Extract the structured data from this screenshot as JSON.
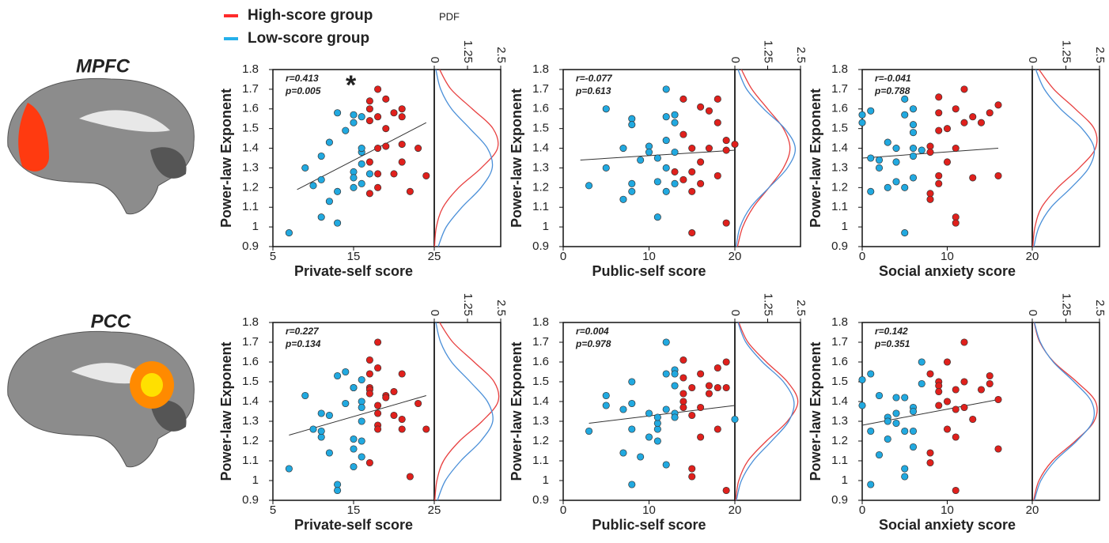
{
  "legend": [
    {
      "name": "High-score group",
      "color": "#ff2a2a"
    },
    {
      "name": "Low-score group",
      "color": "#25b0ea"
    }
  ],
  "regions": [
    "MPFC",
    "PCC"
  ],
  "chart_data": [
    {
      "type": "scatter",
      "xlabel": "Private-self score",
      "ylabel": "Power-law Exponent",
      "r_text": "r=0.413",
      "p_text": "p=0.005",
      "significance": "*",
      "pdf_label": "PDF",
      "xlim": [
        5,
        25
      ],
      "xticks": [
        5,
        15,
        25
      ],
      "ylim": [
        0.9,
        1.8
      ],
      "yticks": [
        0.9,
        1,
        1.1,
        1.2,
        1.3,
        1.4,
        1.5,
        1.6,
        1.7,
        1.8
      ],
      "series": [
        {
          "color": "#21a9e0",
          "x": [
            7,
            9,
            10,
            11,
            11,
            11,
            12,
            12,
            13,
            13,
            13,
            15,
            15,
            15,
            15,
            15,
            16,
            16,
            16,
            16,
            16,
            14,
            17
          ],
          "y": [
            0.97,
            1.3,
            1.21,
            1.05,
            1.24,
            1.36,
            1.43,
            1.13,
            1.02,
            1.18,
            1.58,
            1.57,
            1.53,
            1.28,
            1.2,
            1.25,
            1.38,
            1.4,
            1.22,
            1.56,
            1.32,
            1.49,
            1.27
          ]
        },
        {
          "color": "#e0201c",
          "x": [
            17,
            17,
            17,
            17,
            17,
            18,
            18,
            18,
            18,
            18,
            19,
            19,
            19,
            20,
            21,
            21,
            21,
            21,
            22,
            23,
            24,
            20
          ],
          "y": [
            1.17,
            1.33,
            1.54,
            1.6,
            1.64,
            1.7,
            1.56,
            1.4,
            1.27,
            1.2,
            1.65,
            1.41,
            1.5,
            1.58,
            1.6,
            1.56,
            1.42,
            1.33,
            1.18,
            1.4,
            1.26,
            1.27
          ]
        }
      ],
      "fit": {
        "x": [
          8,
          24
        ],
        "y": [
          1.19,
          1.53
        ]
      },
      "pdf_xlim": [
        0,
        2.5
      ],
      "pdf_ticks": [
        0,
        1.25,
        2.5
      ],
      "pdf_y": [
        0.9,
        1.0,
        1.1,
        1.2,
        1.3,
        1.4,
        1.5,
        1.6,
        1.7,
        1.8
      ],
      "pdf": [
        {
          "color": "#e84040",
          "values": [
            0.01,
            0.08,
            0.33,
            0.92,
            1.77,
            2.38,
            2.21,
            1.43,
            0.63,
            0.2
          ]
        },
        {
          "color": "#4a8fd8",
          "values": [
            0.15,
            0.45,
            1.04,
            1.76,
            2.18,
            2.0,
            1.34,
            0.65,
            0.24,
            0.06
          ]
        }
      ]
    },
    {
      "type": "scatter",
      "xlabel": "Public-self score",
      "ylabel": "Power-law Exponent",
      "r_text": "r=-0.077",
      "p_text": "p=0.613",
      "xlim": [
        0,
        20
      ],
      "xticks": [
        0,
        10,
        20
      ],
      "ylim": [
        0.9,
        1.8
      ],
      "yticks": [
        0.9,
        1,
        1.1,
        1.2,
        1.3,
        1.4,
        1.5,
        1.6,
        1.7,
        1.8
      ],
      "series": [
        {
          "color": "#21a9e0",
          "x": [
            3,
            5,
            5,
            7,
            7,
            8,
            8,
            8,
            8,
            9,
            10,
            10,
            11,
            11,
            11,
            12,
            12,
            12,
            12,
            13,
            13,
            13,
            13,
            12
          ],
          "y": [
            1.21,
            1.6,
            1.3,
            1.14,
            1.4,
            1.55,
            1.52,
            1.22,
            1.18,
            1.34,
            1.41,
            1.38,
            1.05,
            1.23,
            1.35,
            1.7,
            1.56,
            1.44,
            1.18,
            1.57,
            1.53,
            1.38,
            1.22,
            1.3
          ]
        },
        {
          "color": "#e0201c",
          "x": [
            13,
            14,
            14,
            14,
            15,
            15,
            15,
            15,
            16,
            16,
            17,
            17,
            18,
            18,
            18,
            19,
            19,
            19,
            20,
            16
          ],
          "y": [
            1.28,
            1.65,
            1.47,
            1.24,
            1.18,
            1.4,
            0.97,
            1.28,
            1.61,
            1.22,
            1.59,
            1.4,
            1.65,
            1.53,
            1.26,
            1.02,
            1.44,
            1.39,
            1.42,
            1.33
          ]
        }
      ],
      "fit": {
        "x": [
          2,
          20
        ],
        "y": [
          1.34,
          1.39
        ]
      },
      "pdf_xlim": [
        0,
        2.5
      ],
      "pdf_ticks": [
        0,
        1.25,
        2.5
      ],
      "pdf_y": [
        0.9,
        1.0,
        1.1,
        1.2,
        1.3,
        1.4,
        1.5,
        1.6,
        1.7,
        1.8
      ],
      "pdf": [
        {
          "color": "#e84040",
          "values": [
            0.1,
            0.3,
            0.7,
            1.3,
            1.85,
            2.1,
            1.85,
            1.25,
            0.65,
            0.25
          ]
        },
        {
          "color": "#4a8fd8",
          "values": [
            0.05,
            0.2,
            0.6,
            1.3,
            2.0,
            2.3,
            1.9,
            1.1,
            0.45,
            0.12
          ]
        }
      ]
    },
    {
      "type": "scatter",
      "xlabel": "Social anxiety score",
      "ylabel": "Power-law Exponent",
      "r_text": "r=-0.041",
      "p_text": "p=0.788",
      "xlim": [
        0,
        20
      ],
      "xticks": [
        0,
        10,
        20
      ],
      "ylim": [
        0.9,
        1.8
      ],
      "yticks": [
        0.9,
        1,
        1.1,
        1.2,
        1.3,
        1.4,
        1.5,
        1.6,
        1.7,
        1.8
      ],
      "series": [
        {
          "color": "#21a9e0",
          "x": [
            0,
            0,
            1,
            1,
            1,
            2,
            2,
            3,
            3,
            4,
            4,
            5,
            5,
            5,
            5,
            6,
            6,
            6,
            6,
            6,
            7,
            6,
            4
          ],
          "y": [
            1.57,
            1.53,
            1.59,
            1.35,
            1.18,
            1.3,
            1.34,
            1.43,
            1.2,
            1.4,
            1.23,
            1.65,
            1.57,
            1.2,
            0.97,
            1.6,
            1.48,
            1.4,
            1.36,
            1.25,
            1.39,
            1.52,
            1.33
          ]
        },
        {
          "color": "#e0201c",
          "x": [
            8,
            8,
            8,
            8,
            9,
            9,
            9,
            9,
            9,
            10,
            11,
            11,
            11,
            11,
            12,
            12,
            13,
            14,
            15,
            16,
            16,
            10,
            13
          ],
          "y": [
            1.41,
            1.17,
            1.14,
            1.38,
            1.66,
            1.58,
            1.49,
            1.26,
            1.22,
            1.33,
            1.6,
            1.4,
            1.05,
            1.02,
            1.7,
            1.53,
            1.25,
            1.53,
            1.58,
            1.62,
            1.26,
            1.5,
            1.56
          ]
        }
      ],
      "fit": {
        "x": [
          0,
          16
        ],
        "y": [
          1.35,
          1.4
        ]
      },
      "pdf_xlim": [
        0,
        2.5
      ],
      "pdf_ticks": [
        0,
        1.25,
        2.5
      ],
      "pdf_y": [
        0.9,
        1.0,
        1.1,
        1.2,
        1.3,
        1.4,
        1.5,
        1.6,
        1.7,
        1.8
      ],
      "pdf": [
        {
          "color": "#e84040",
          "values": [
            0.02,
            0.1,
            0.35,
            0.95,
            1.75,
            2.35,
            2.3,
            1.6,
            0.8,
            0.25
          ]
        },
        {
          "color": "#4a8fd8",
          "values": [
            0.06,
            0.25,
            0.7,
            1.45,
            2.1,
            2.3,
            1.85,
            1.05,
            0.45,
            0.13
          ]
        }
      ]
    },
    {
      "type": "scatter",
      "xlabel": "Private-self score",
      "ylabel": "Power-law Exponent",
      "r_text": "r=0.227",
      "p_text": "p=0.134",
      "xlim": [
        5,
        25
      ],
      "xticks": [
        5,
        15,
        25
      ],
      "ylim": [
        0.9,
        1.8
      ],
      "yticks": [
        0.9,
        1,
        1.1,
        1.2,
        1.3,
        1.4,
        1.5,
        1.6,
        1.7,
        1.8
      ],
      "series": [
        {
          "color": "#21a9e0",
          "x": [
            7,
            9,
            10,
            11,
            11,
            11,
            12,
            12,
            13,
            13,
            13,
            14,
            15,
            15,
            15,
            15,
            15,
            16,
            16,
            16,
            16,
            16,
            16,
            14
          ],
          "y": [
            1.06,
            1.43,
            1.26,
            1.34,
            1.22,
            1.25,
            1.14,
            1.33,
            0.98,
            0.95,
            1.53,
            1.55,
            1.47,
            1.47,
            1.21,
            1.16,
            1.07,
            1.4,
            1.37,
            1.3,
            1.12,
            1.2,
            1.51,
            1.39
          ]
        },
        {
          "color": "#e0201c",
          "x": [
            17,
            17,
            17,
            17,
            17,
            17,
            18,
            18,
            18,
            18,
            18,
            18,
            19,
            19,
            20,
            20,
            21,
            21,
            21,
            22,
            23,
            24
          ],
          "y": [
            1.61,
            1.54,
            1.47,
            1.46,
            1.44,
            1.09,
            1.7,
            1.57,
            1.38,
            1.34,
            1.28,
            1.26,
            1.43,
            1.42,
            1.33,
            1.45,
            1.54,
            1.31,
            1.26,
            1.02,
            1.39,
            1.26
          ]
        }
      ],
      "fit": {
        "x": [
          7,
          24
        ],
        "y": [
          1.23,
          1.43
        ]
      },
      "pdf_xlim": [
        0,
        2.5
      ],
      "pdf_ticks": [
        0,
        1.25,
        2.5
      ],
      "pdf_y": [
        0.9,
        1.0,
        1.1,
        1.2,
        1.3,
        1.4,
        1.5,
        1.6,
        1.7,
        1.8
      ],
      "pdf": [
        {
          "color": "#e84040",
          "values": [
            0.02,
            0.1,
            0.35,
            0.95,
            1.8,
            2.4,
            2.25,
            1.5,
            0.7,
            0.2
          ]
        },
        {
          "color": "#4a8fd8",
          "values": [
            0.12,
            0.42,
            1.0,
            1.75,
            2.2,
            2.0,
            1.35,
            0.65,
            0.24,
            0.06
          ]
        }
      ]
    },
    {
      "type": "scatter",
      "xlabel": "Public-self score",
      "ylabel": "Power-law Exponent",
      "r_text": "r=0.004",
      "p_text": "p=0.978",
      "xlim": [
        0,
        20
      ],
      "xticks": [
        0,
        10,
        20
      ],
      "ylim": [
        0.9,
        1.8
      ],
      "yticks": [
        0.9,
        1,
        1.1,
        1.2,
        1.3,
        1.4,
        1.5,
        1.6,
        1.7,
        1.8
      ],
      "series": [
        {
          "color": "#21a9e0",
          "x": [
            3,
            5,
            5,
            7,
            7,
            8,
            8,
            8,
            8,
            9,
            10,
            10,
            11,
            11,
            11,
            11,
            12,
            12,
            12,
            12,
            13,
            13,
            13,
            13,
            13,
            20
          ],
          "y": [
            1.25,
            1.43,
            1.38,
            1.14,
            1.36,
            1.5,
            0.98,
            1.39,
            1.26,
            1.12,
            1.34,
            1.22,
            1.26,
            1.29,
            1.32,
            1.2,
            1.7,
            1.54,
            1.36,
            1.08,
            1.56,
            1.54,
            1.34,
            1.32,
            1.48,
            1.31
          ]
        },
        {
          "color": "#e0201c",
          "x": [
            14,
            14,
            14,
            14,
            14,
            15,
            15,
            15,
            16,
            16,
            16,
            17,
            17,
            18,
            18,
            18,
            19,
            19,
            19,
            15
          ],
          "y": [
            1.61,
            1.52,
            1.44,
            1.4,
            1.37,
            1.06,
            1.02,
            1.47,
            1.54,
            1.22,
            1.37,
            1.44,
            1.48,
            1.47,
            1.26,
            1.57,
            1.6,
            0.95,
            1.47,
            1.33
          ]
        }
      ],
      "fit": {
        "x": [
          3,
          20
        ],
        "y": [
          1.29,
          1.38
        ]
      },
      "pdf_xlim": [
        0,
        2.5
      ],
      "pdf_ticks": [
        0,
        1.25,
        2.5
      ],
      "pdf_y": [
        0.9,
        1.0,
        1.1,
        1.2,
        1.3,
        1.4,
        1.5,
        1.6,
        1.7,
        1.8
      ],
      "pdf": [
        {
          "color": "#e84040",
          "values": [
            0.03,
            0.15,
            0.5,
            1.2,
            2.0,
            2.4,
            2.0,
            1.2,
            0.5,
            0.15
          ]
        },
        {
          "color": "#4a8fd8",
          "values": [
            0.06,
            0.25,
            0.7,
            1.4,
            2.05,
            2.25,
            1.85,
            1.05,
            0.42,
            0.12
          ]
        }
      ]
    },
    {
      "type": "scatter",
      "xlabel": "Social anxiety score",
      "ylabel": "Power-law Exponent",
      "r_text": "r=0.142",
      "p_text": "p=0.351",
      "xlim": [
        0,
        20
      ],
      "xticks": [
        0,
        10,
        20
      ],
      "ylim": [
        0.9,
        1.8
      ],
      "yticks": [
        0.9,
        1,
        1.1,
        1.2,
        1.3,
        1.4,
        1.5,
        1.6,
        1.7,
        1.8
      ],
      "series": [
        {
          "color": "#21a9e0",
          "x": [
            0,
            0,
            1,
            1,
            1,
            2,
            2,
            3,
            3,
            4,
            4,
            4,
            5,
            5,
            5,
            5,
            6,
            6,
            6,
            6,
            7,
            7,
            3
          ],
          "y": [
            1.51,
            1.38,
            1.54,
            1.25,
            0.98,
            1.43,
            1.13,
            1.32,
            1.21,
            1.34,
            1.29,
            1.42,
            1.42,
            1.06,
            1.02,
            1.25,
            1.37,
            1.35,
            1.17,
            1.25,
            1.6,
            1.49,
            1.3
          ]
        },
        {
          "color": "#e0201c",
          "x": [
            8,
            8,
            8,
            9,
            9,
            9,
            9,
            10,
            10,
            11,
            11,
            11,
            11,
            12,
            12,
            12,
            13,
            14,
            15,
            15,
            16,
            16,
            10
          ],
          "y": [
            1.54,
            1.14,
            1.09,
            1.5,
            1.48,
            1.45,
            1.38,
            1.26,
            1.4,
            1.46,
            1.36,
            1.22,
            0.95,
            1.7,
            1.5,
            1.37,
            1.31,
            1.46,
            1.53,
            1.49,
            1.41,
            1.16,
            1.6
          ]
        }
      ],
      "fit": {
        "x": [
          0,
          16
        ],
        "y": [
          1.28,
          1.41
        ]
      },
      "pdf_xlim": [
        0,
        2.5
      ],
      "pdf_ticks": [
        0,
        1.25,
        2.5
      ],
      "pdf_y": [
        0.9,
        1.0,
        1.1,
        1.2,
        1.3,
        1.4,
        1.5,
        1.6,
        1.7,
        1.8
      ],
      "pdf": [
        {
          "color": "#e84040",
          "values": [
            0.05,
            0.25,
            0.75,
            1.6,
            2.3,
            2.35,
            1.65,
            0.8,
            0.28,
            0.07
          ]
        },
        {
          "color": "#4a8fd8",
          "values": [
            0.08,
            0.32,
            0.85,
            1.65,
            2.25,
            2.2,
            1.55,
            0.78,
            0.3,
            0.08
          ]
        }
      ]
    }
  ]
}
